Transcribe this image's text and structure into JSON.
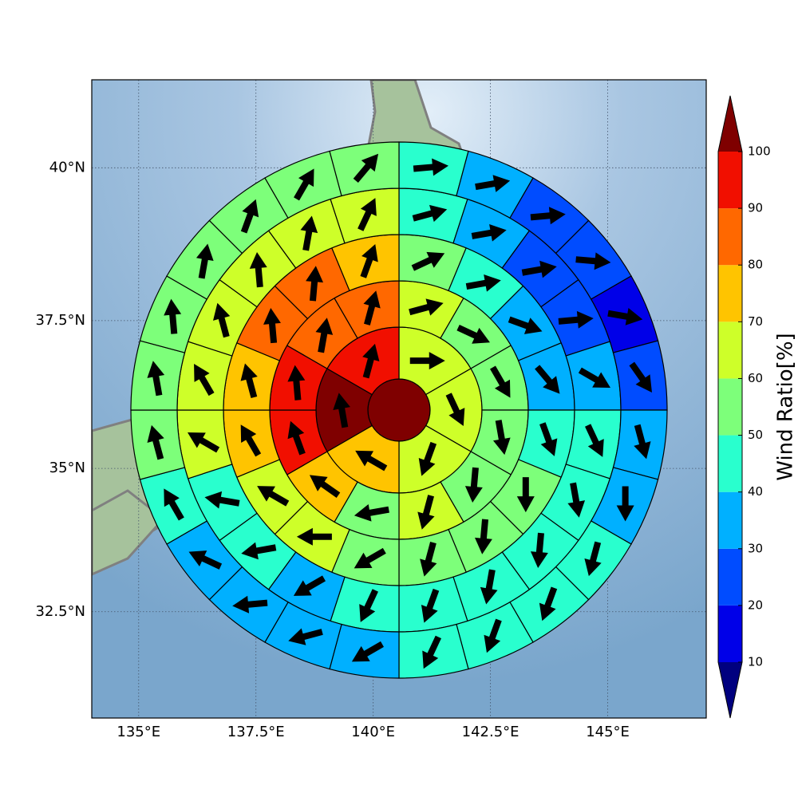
{
  "chart_data": {
    "type": "polar-sectors",
    "projection": "mercator",
    "xlim": [
      134,
      147.1
    ],
    "ylim": [
      30.6,
      41.4
    ],
    "xticks": [
      {
        "value": 135,
        "label": "135°E"
      },
      {
        "value": 137.5,
        "label": "137.5°E"
      },
      {
        "value": 140,
        "label": "140°E"
      },
      {
        "value": 142.5,
        "label": "142.5°E"
      },
      {
        "value": 145,
        "label": "145°E"
      }
    ],
    "yticks": [
      {
        "value": 32.5,
        "label": "32.5°N"
      },
      {
        "value": 35,
        "label": "35°N"
      },
      {
        "value": 37.5,
        "label": "37.5°N"
      },
      {
        "value": 40,
        "label": "40°N"
      }
    ],
    "grid": true,
    "center_value": 105,
    "rings": [
      {
        "values": [
          65,
          65,
          65,
          75,
          102,
          95
        ],
        "directions": [
          90,
          155,
          200,
          300,
          350,
          15
        ]
      },
      {
        "values": [
          60,
          55,
          55,
          55,
          55,
          60,
          55,
          75,
          92,
          92,
          85,
          85
        ],
        "directions": [
          75,
          115,
          150,
          170,
          185,
          195,
          260,
          305,
          340,
          355,
          10,
          15
        ]
      },
      {
        "values": [
          55,
          45,
          35,
          30,
          45,
          55,
          55,
          55,
          55,
          60,
          60,
          72,
          75,
          85,
          85,
          72
        ],
        "directions": [
          65,
          80,
          110,
          140,
          160,
          180,
          185,
          195,
          240,
          270,
          300,
          330,
          345,
          355,
          5,
          20
        ]
      },
      {
        "values": [
          45,
          35,
          25,
          22,
          30,
          45,
          45,
          45,
          45,
          45,
          45,
          35,
          45,
          48,
          62,
          65,
          62,
          62,
          62,
          62
        ],
        "directions": [
          75,
          80,
          80,
          85,
          120,
          155,
          170,
          185,
          190,
          200,
          205,
          240,
          260,
          280,
          300,
          330,
          345,
          355,
          10,
          25
        ]
      },
      {
        "values": [
          45,
          35,
          25,
          22,
          15,
          25,
          35,
          35,
          45,
          45,
          45,
          45,
          35,
          35,
          35,
          35,
          45,
          55,
          55,
          55,
          55,
          55,
          55,
          55
        ],
        "directions": [
          85,
          80,
          85,
          95,
          100,
          145,
          165,
          180,
          195,
          200,
          200,
          205,
          240,
          255,
          265,
          295,
          330,
          345,
          350,
          355,
          10,
          20,
          30,
          40
        ]
      }
    ],
    "colorbar": {
      "label": "Wind Ratio[%]",
      "levels": [
        10,
        20,
        30,
        40,
        50,
        60,
        70,
        80,
        90,
        100
      ],
      "colors": [
        "#00007f",
        "#0000e8",
        "#004cff",
        "#00b0ff",
        "#29ffce",
        "#7dff7a",
        "#ceff29",
        "#ffc400",
        "#ff6800",
        "#f10f00",
        "#7f0000"
      ],
      "extend": "both"
    }
  }
}
